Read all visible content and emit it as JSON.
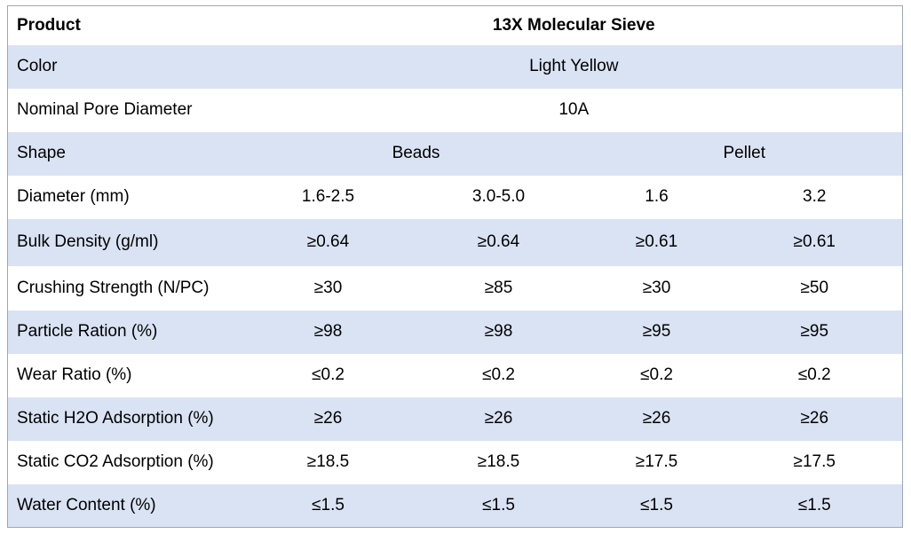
{
  "table": {
    "header": {
      "label": "Product",
      "value": "13X Molecular Sieve"
    },
    "color": {
      "label": "Color",
      "value": "Light Yellow"
    },
    "pore": {
      "label": "Nominal Pore Diameter",
      "value": "10A"
    },
    "shape": {
      "label": "Shape",
      "beads": "Beads",
      "pellet": "Pellet"
    },
    "rows": [
      {
        "label": "Diameter (mm)",
        "values": [
          "1.6-2.5",
          "3.0-5.0",
          "1.6",
          "3.2"
        ]
      },
      {
        "label": "Bulk Density (g/ml)",
        "values": [
          "≥0.64",
          "≥0.64",
          "≥0.61",
          "≥0.61"
        ]
      },
      {
        "label": "Crushing Strength (N/PC)",
        "values": [
          "≥30",
          "≥85",
          "≥30",
          "≥50"
        ]
      },
      {
        "label": "Particle Ration (%)",
        "values": [
          "≥98",
          "≥98",
          "≥95",
          "≥95"
        ]
      },
      {
        "label": "Wear Ratio (%)",
        "values": [
          "≤0.2",
          "≤0.2",
          "≤0.2",
          "≤0.2"
        ]
      },
      {
        "label": "Static H2O Adsorption (%)",
        "values": [
          "≥26",
          "≥26",
          "≥26",
          "≥26"
        ]
      },
      {
        "label": "Static CO2 Adsorption (%)",
        "values": [
          "≥18.5",
          "≥18.5",
          "≥17.5",
          "≥17.5"
        ]
      },
      {
        "label": "Water Content (%)",
        "values": [
          "≤1.5",
          "≤1.5",
          "≤1.5",
          "≤1.5"
        ]
      }
    ]
  }
}
